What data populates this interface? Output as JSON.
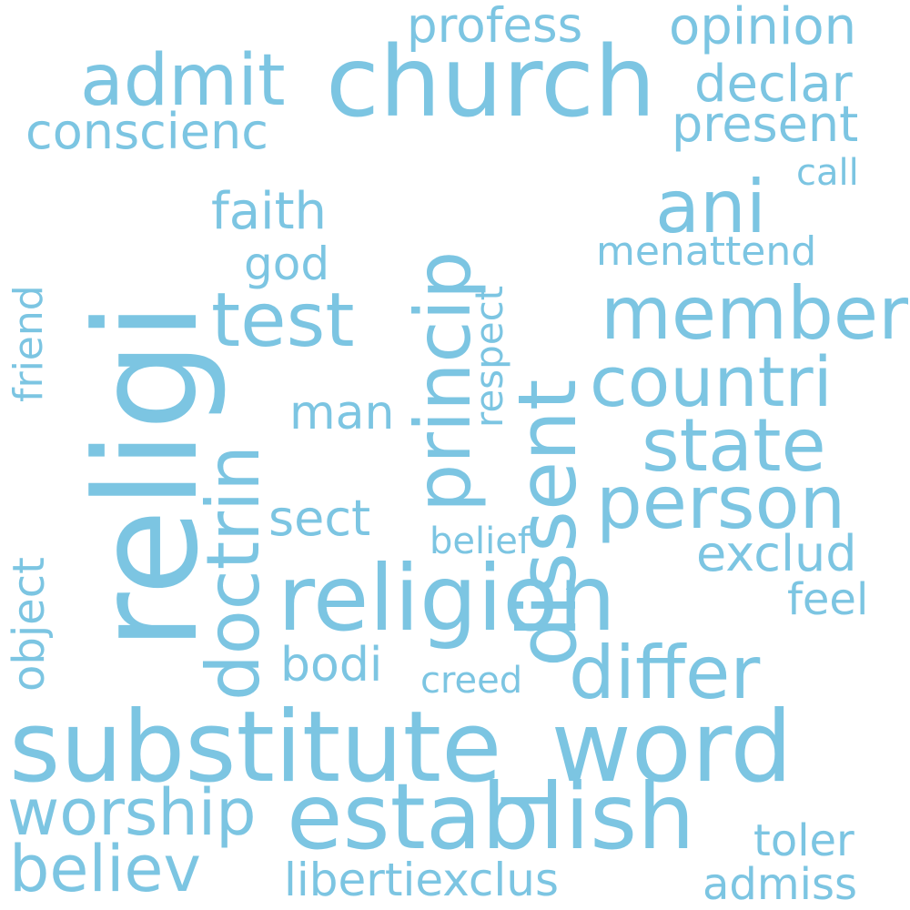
{
  "word_color": "#7cc5e2",
  "background": "#ffffff",
  "words": [
    {
      "text": "religi",
      "orientation": "vertical"
    },
    {
      "text": "substitute_word",
      "orientation": "horizontal"
    },
    {
      "text": "church",
      "orientation": "horizontal"
    },
    {
      "text": "religion",
      "orientation": "horizontal"
    },
    {
      "text": "establish",
      "orientation": "horizontal"
    },
    {
      "text": "dissent",
      "orientation": "vertical"
    },
    {
      "text": "princip",
      "orientation": "vertical"
    },
    {
      "text": "doctrin",
      "orientation": "vertical"
    },
    {
      "text": "test",
      "orientation": "horizontal"
    },
    {
      "text": "admit",
      "orientation": "horizontal"
    },
    {
      "text": "member",
      "orientation": "horizontal"
    },
    {
      "text": "person",
      "orientation": "horizontal"
    },
    {
      "text": "differ",
      "orientation": "horizontal"
    },
    {
      "text": "state",
      "orientation": "horizontal"
    },
    {
      "text": "countri",
      "orientation": "horizontal"
    },
    {
      "text": "ani",
      "orientation": "horizontal"
    },
    {
      "text": "believ",
      "orientation": "horizontal"
    },
    {
      "text": "worship",
      "orientation": "horizontal"
    },
    {
      "text": "opinion",
      "orientation": "horizontal"
    },
    {
      "text": "profess",
      "orientation": "horizontal"
    },
    {
      "text": "conscienc",
      "orientation": "horizontal"
    },
    {
      "text": "declar",
      "orientation": "horizontal"
    },
    {
      "text": "present",
      "orientation": "horizontal"
    },
    {
      "text": "faith",
      "orientation": "horizontal"
    },
    {
      "text": "exclud",
      "orientation": "horizontal"
    },
    {
      "text": "sect",
      "orientation": "horizontal"
    },
    {
      "text": "bodi",
      "orientation": "horizontal"
    },
    {
      "text": "man",
      "orientation": "horizontal"
    },
    {
      "text": "god",
      "orientation": "horizontal"
    },
    {
      "text": "libertiexclus",
      "orientation": "horizontal"
    },
    {
      "text": "admiss",
      "orientation": "horizontal"
    },
    {
      "text": "toler",
      "orientation": "horizontal"
    },
    {
      "text": "feel",
      "orientation": "horizontal"
    },
    {
      "text": "creed",
      "orientation": "horizontal"
    },
    {
      "text": "belief",
      "orientation": "horizontal"
    },
    {
      "text": "menattend",
      "orientation": "horizontal"
    },
    {
      "text": "call",
      "orientation": "horizontal"
    },
    {
      "text": "respect",
      "orientation": "vertical"
    },
    {
      "text": "friend",
      "orientation": "vertical"
    },
    {
      "text": "object",
      "orientation": "vertical"
    }
  ]
}
